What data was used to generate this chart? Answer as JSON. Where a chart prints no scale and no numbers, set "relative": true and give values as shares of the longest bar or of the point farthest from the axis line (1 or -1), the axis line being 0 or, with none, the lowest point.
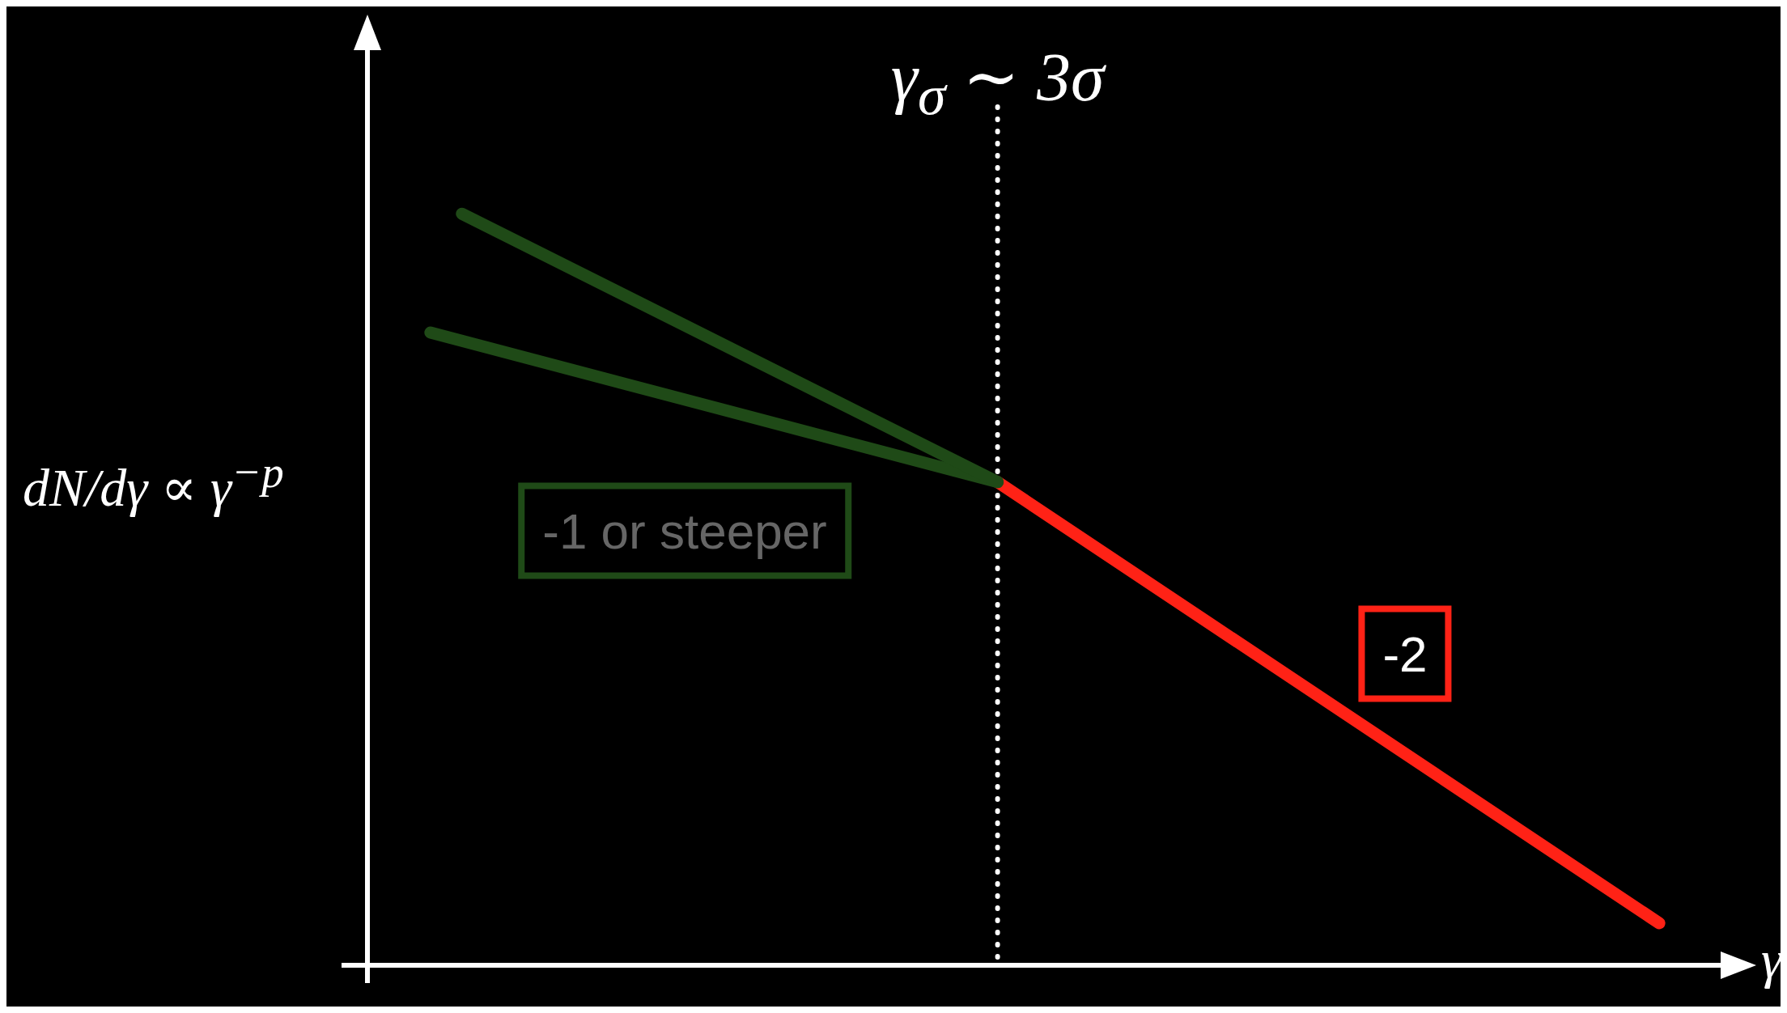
{
  "chart_data": {
    "type": "line",
    "relative": true,
    "xlabel": "γ",
    "ylabel": "dN/dγ ∝ γ$^{−p}$",
    "marker": "none",
    "categories": [
      null,
      null,
      null,
      null,
      null,
      null,
      null,
      null,
      null,
      null,
      null,
      null,
      null,
      null,
      null,
      null,
      null,
      null,
      null,
      null,
      null,
      null,
      null,
      null,
      null,
      null,
      null,
      null,
      null,
      null,
      null,
      null,
      null,
      null,
      null,
      null,
      null,
      null,
      null,
      null,
      null,
      null,
      null,
      null
    ],
    "series": [
      {
        "color": "#1f4a17",
        "values": [
          null,
          null,
          null,
          1,
          null,
          null,
          null,
          null,
          null,
          null,
          null,
          null,
          null,
          null,
          null,
          null,
          null,
          null,
          null,
          null,
          0.643,
          null,
          null,
          null,
          null,
          null,
          null,
          null,
          null,
          null,
          null,
          null,
          null,
          null,
          null,
          null,
          null,
          null,
          null,
          null,
          null,
          null,
          null,
          null
        ]
      },
      {
        "color": "#1f4a17",
        "values": [
          null,
          null,
          0.842,
          null,
          null,
          null,
          null,
          null,
          null,
          null,
          null,
          null,
          null,
          null,
          null,
          null,
          null,
          null,
          null,
          null,
          0.643,
          null,
          null,
          null,
          null,
          null,
          null,
          null,
          null,
          null,
          null,
          null,
          null,
          null,
          null,
          null,
          null,
          null,
          null,
          null,
          null,
          null,
          null,
          null
        ]
      },
      {
        "color": "#ff2216",
        "values": [
          null,
          null,
          null,
          null,
          null,
          null,
          null,
          null,
          null,
          null,
          null,
          null,
          null,
          null,
          null,
          null,
          null,
          null,
          null,
          null,
          0.643,
          null,
          null,
          null,
          null,
          null,
          null,
          null,
          null,
          null,
          null,
          null,
          null,
          null,
          null,
          null,
          null,
          null,
          null,
          null,
          null,
          0.056,
          null,
          null
        ]
      }
    ],
    "annotations": [
      "γ$_{σ}$ ∼ 3σ",
      "-1 or steeper",
      "-2"
    ]
  }
}
